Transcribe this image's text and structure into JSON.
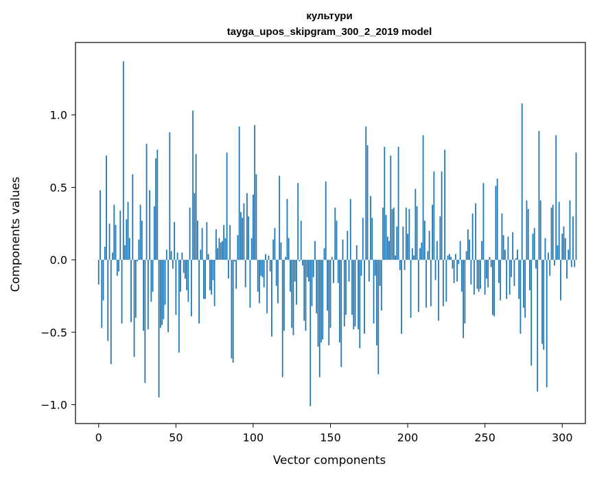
{
  "chart_data": {
    "type": "bar",
    "title": "культури",
    "subtitle": "tayga_upos_skipgram_300_2_2019 model",
    "xlabel": "Vector components",
    "ylabel": "Components values",
    "xlim": [
      -15,
      315
    ],
    "ylim": [
      -1.13,
      1.5
    ],
    "x_ticks": [
      0,
      50,
      100,
      150,
      200,
      250,
      300
    ],
    "x_tick_labels": [
      "0",
      "50",
      "100",
      "150",
      "200",
      "250",
      "300"
    ],
    "y_ticks": [
      -1.0,
      -0.5,
      0.0,
      0.5,
      1.0
    ],
    "y_tick_labels": [
      "−1.0",
      "−0.5",
      "0.0",
      "0.5",
      "1.0"
    ],
    "bar_color": "#1f77b4",
    "bar_width": 0.8,
    "grid": false,
    "legend": "none",
    "values": [
      -0.17,
      0.48,
      -0.47,
      -0.28,
      0.09,
      0.72,
      -0.56,
      0.25,
      -0.72,
      0.05,
      0.38,
      0.24,
      -0.11,
      -0.08,
      0.34,
      -0.44,
      1.37,
      0.1,
      0.28,
      0.4,
      0.15,
      -0.43,
      0.59,
      -0.67,
      -0.4,
      -0.01,
      0.14,
      0.38,
      0.27,
      -0.49,
      -0.85,
      0.8,
      -0.48,
      0.48,
      -0.29,
      -0.22,
      0.37,
      0.7,
      0.76,
      -0.95,
      -0.47,
      -0.45,
      -0.41,
      -0.31,
      0.07,
      -0.5,
      0.88,
      0.06,
      -0.06,
      0.26,
      -0.38,
      0.05,
      -0.64,
      -0.22,
      0.05,
      -0.09,
      -0.13,
      -0.21,
      -0.29,
      0.36,
      -0.39,
      1.03,
      0.46,
      0.73,
      0.27,
      -0.44,
      0.07,
      0.22,
      -0.27,
      -0.27,
      0.26,
      0.04,
      -0.21,
      -0.24,
      -0.14,
      -0.32,
      0.21,
      0.08,
      0.15,
      0.12,
      0.13,
      0.24,
      0.15,
      0.74,
      -0.13,
      0.24,
      -0.68,
      -0.71,
      -0.01,
      -0.2,
      0.17,
      0.92,
      0.33,
      0.29,
      0.39,
      -0.19,
      0.46,
      0.3,
      -0.33,
      0.15,
      0.45,
      0.93,
      0.59,
      -0.22,
      -0.3,
      -0.11,
      -0.12,
      -0.19,
      0.04,
      -0.37,
      0.03,
      -0.08,
      -0.53,
      0.14,
      0.22,
      -0.18,
      -0.3,
      0.58,
      0.12,
      -0.81,
      -0.49,
      0.02,
      0.42,
      0.15,
      -0.22,
      -0.47,
      -0.52,
      -0.15,
      -0.31,
      0.53,
      -0.01,
      0.27,
      -0.04,
      -0.42,
      -0.49,
      -0.12,
      -0.15,
      -1.01,
      -0.32,
      -0.12,
      0.13,
      -0.37,
      -0.6,
      -0.81,
      -0.57,
      -0.55,
      0.08,
      0.54,
      -0.35,
      -0.59,
      -0.47,
      0.02,
      -0.16,
      0.36,
      0.27,
      -0.16,
      -0.57,
      -0.74,
      0.14,
      -0.46,
      -0.38,
      0.2,
      -0.15,
      0.42,
      -0.38,
      -0.48,
      -0.46,
      0.1,
      -0.48,
      -0.61,
      -0.11,
      0.29,
      -0.51,
      0.92,
      0.79,
      -0.15,
      0.44,
      0.29,
      -0.44,
      -0.11,
      -0.59,
      -0.79,
      -0.18,
      -0.35,
      0.36,
      0.78,
      0.31,
      0.16,
      0.13,
      0.72,
      0.35,
      0.36,
      0.03,
      0.23,
      0.78,
      -0.07,
      -0.51,
      0.23,
      -0.07,
      0.36,
      0.18,
      0.35,
      -0.4,
      0.08,
      0.03,
      0.49,
      0.37,
      -0.36,
      0.08,
      0.12,
      0.86,
      0.27,
      -0.33,
      0.06,
      0.2,
      -0.32,
      0.38,
      0.61,
      -0.14,
      0.13,
      -0.42,
      0.3,
      0.61,
      -0.32,
      0.76,
      -0.29,
      0.03,
      0.04,
      0.02,
      -0.06,
      -0.16,
      0.04,
      -0.15,
      -0.03,
      0.13,
      -0.22,
      -0.54,
      -0.44,
      0.06,
      0.21,
      0.14,
      -0.17,
      0.32,
      -0.24,
      0.39,
      -0.2,
      -0.22,
      -0.2,
      0.13,
      0.53,
      -0.24,
      -0.13,
      -0.19,
      0.02,
      -0.05,
      -0.38,
      -0.39,
      0.51,
      0.56,
      -0.16,
      -0.28,
      0.32,
      0.17,
      0.07,
      -0.27,
      0.16,
      -0.24,
      -0.12,
      0.19,
      -0.18,
      0.01,
      0.07,
      -0.27,
      -0.51,
      1.08,
      -0.33,
      -0.4,
      0.41,
      0.35,
      -0.21,
      -0.73,
      0.18,
      0.22,
      -0.06,
      -0.91,
      0.89,
      0.41,
      -0.58,
      -0.62,
      0.15,
      -0.88,
      0.05,
      -0.11,
      0.36,
      0.38,
      -0.04,
      0.86,
      0.1,
      0.4,
      -0.28,
      0.18,
      0.23,
      0.15,
      -0.13,
      0.07,
      0.41,
      -0.05,
      0.3,
      -0.05,
      0.74
    ]
  }
}
